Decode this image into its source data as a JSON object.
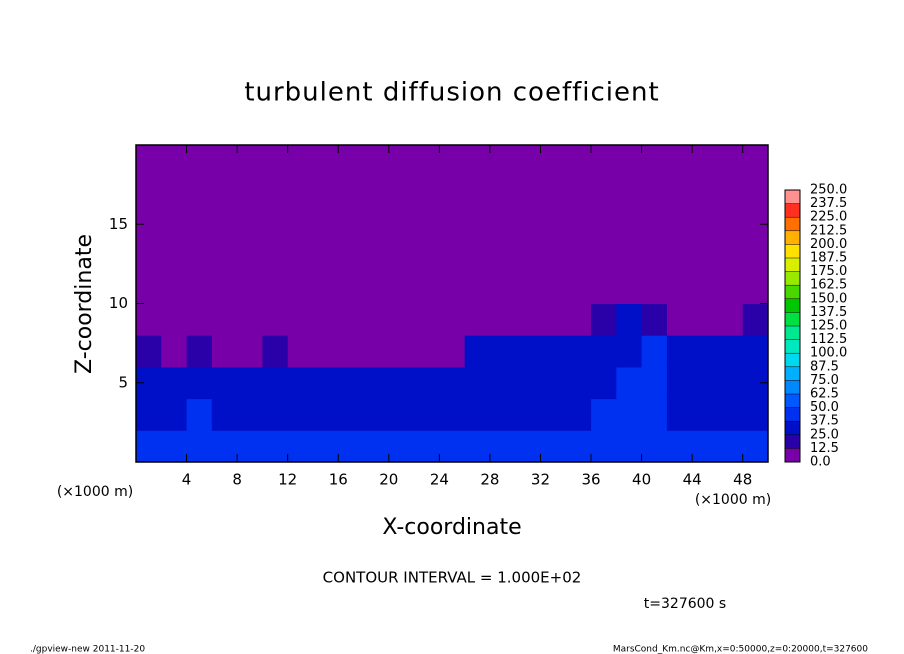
{
  "chart_data": {
    "type": "heatmap",
    "title": "turbulent diffusion coefficient",
    "x_label": "X-coordinate",
    "y_label": "Z-coordinate",
    "x_unit_label": "(×1000 m)",
    "y_unit_label": "(×1000 m)",
    "annotation": "CONTOUR INTERVAL = 1.000E+02",
    "time_label": "t=327600 s",
    "footer_left": "./gpview-new  2011-11-20",
    "footer_right": "MarsCond_Km.nc@Km,x=0:50000,z=0:20000,t=327600",
    "xlim": [
      0,
      50
    ],
    "ylim": [
      0,
      20
    ],
    "xticks": [
      4,
      8,
      12,
      16,
      20,
      24,
      28,
      32,
      36,
      40,
      44,
      48
    ],
    "yticks": [
      5,
      10,
      15
    ],
    "xbins": [
      0,
      2,
      4,
      6,
      8,
      10,
      12,
      14,
      16,
      18,
      20,
      22,
      24,
      26,
      28,
      30,
      32,
      34,
      36,
      38,
      40,
      42,
      44,
      46,
      48,
      50
    ],
    "ybins": [
      0,
      2,
      4,
      6,
      8,
      10,
      12,
      14,
      16,
      18,
      20
    ],
    "z": [
      [
        45,
        40,
        42,
        38,
        40,
        44,
        42,
        40,
        38,
        45,
        42,
        40,
        38,
        40,
        45,
        42,
        40,
        38,
        40,
        42,
        45,
        40,
        38,
        42,
        40
      ],
      [
        30,
        35,
        38,
        32,
        36,
        34,
        30,
        33,
        36,
        32,
        30,
        28,
        30,
        32,
        30,
        34,
        35,
        30,
        38,
        40,
        42,
        35,
        30,
        32,
        34
      ],
      [
        28,
        30,
        32,
        28,
        30,
        32,
        28,
        30,
        28,
        30,
        26,
        30,
        28,
        30,
        32,
        28,
        30,
        32,
        35,
        38,
        40,
        30,
        28,
        30,
        30
      ],
      [
        20,
        12,
        15,
        10,
        12,
        14,
        10,
        12,
        8,
        10,
        8,
        10,
        12,
        25,
        28,
        30,
        30,
        32,
        30,
        35,
        38,
        30,
        28,
        30,
        32
      ],
      [
        0,
        0,
        0,
        0,
        0,
        0,
        0,
        0,
        0,
        0,
        0,
        0,
        0,
        0,
        0,
        0,
        0,
        0,
        20,
        25,
        15,
        0,
        0,
        0,
        15
      ],
      [
        0,
        0,
        0,
        0,
        0,
        0,
        0,
        0,
        0,
        0,
        0,
        0,
        0,
        0,
        0,
        0,
        0,
        0,
        0,
        0,
        0,
        0,
        0,
        0,
        0
      ],
      [
        0,
        0,
        0,
        0,
        0,
        0,
        0,
        0,
        0,
        0,
        0,
        0,
        0,
        0,
        0,
        0,
        0,
        0,
        0,
        0,
        0,
        0,
        0,
        0,
        0
      ],
      [
        0,
        0,
        0,
        0,
        0,
        0,
        0,
        0,
        0,
        0,
        0,
        0,
        0,
        0,
        0,
        0,
        0,
        0,
        0,
        0,
        0,
        0,
        0,
        0,
        0
      ],
      [
        0,
        0,
        0,
        0,
        0,
        0,
        0,
        0,
        0,
        0,
        0,
        0,
        0,
        0,
        0,
        0,
        0,
        0,
        0,
        0,
        0,
        0,
        0,
        0,
        0
      ],
      [
        0,
        0,
        0,
        0,
        0,
        0,
        0,
        0,
        0,
        0,
        0,
        0,
        0,
        0,
        0,
        0,
        0,
        0,
        0,
        0,
        0,
        0,
        0,
        0,
        0
      ]
    ],
    "levels": [
      {
        "value": 0,
        "label": "0.0"
      },
      12.5,
      {
        "value": 25,
        "label": "25.0"
      },
      37.5,
      {
        "value": 50,
        "label": "50.0"
      },
      62.5,
      {
        "value": 75,
        "label": "75.0"
      },
      87.5,
      {
        "value": 100,
        "label": "100.0"
      },
      112.5,
      {
        "value": 125,
        "label": "125.0"
      },
      137.5,
      {
        "value": 150,
        "label": "150.0"
      },
      162.5,
      {
        "value": 175,
        "label": "175.0"
      },
      187.5,
      {
        "value": 200,
        "label": "200.0"
      },
      212.5,
      {
        "value": 225,
        "label": "225.0"
      },
      237.5,
      {
        "value": 250,
        "label": "250.0"
      }
    ],
    "colors": [
      "#7800a8",
      "#2a00a8",
      "#0010c8",
      "#0030f0",
      "#0058ff",
      "#0088ff",
      "#00b0ff",
      "#00d8f0",
      "#00e8c0",
      "#00e890",
      "#00e040",
      "#00c800",
      "#48d800",
      "#98e800",
      "#d8f000",
      "#ffe000",
      "#ffb000",
      "#ff7000",
      "#ff3020",
      "#ff9090"
    ]
  }
}
